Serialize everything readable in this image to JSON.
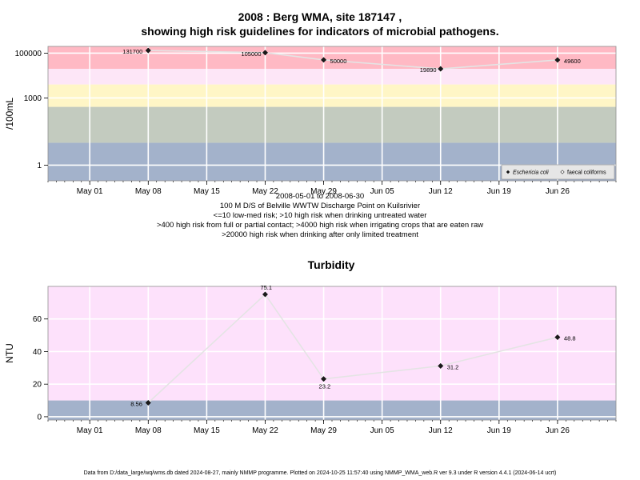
{
  "title_line1": "2008 : Berg WMA, site 187147 ,",
  "title_line2": "showing high risk guidelines for indicators of microbial pathogens.",
  "captions": [
    "2008-05-01 to 2008-06-30",
    "100 M D/S of Belville WWTW Discharge Point on Kuilsrivier",
    "<=10 low-med risk; >10 high risk when drinking untreated water",
    ">400 high risk from full or partial contact; >4000 high risk when irrigating crops that are eaten raw",
    ">20000 high risk when drinking after only limited treatment"
  ],
  "footer": "Data from D:/data_large/wq/wms.db dated 2024-08-27, mainly NMMP programme. Plotted on 2024-10-25 11:57:40 using NMMP_WMA_web.R ver 9.3 under R version 4.4.1 (2024-06-14 ucrt)",
  "chart_data": [
    {
      "type": "line",
      "title": "",
      "ylabel": "/100mL",
      "yscale": "log10",
      "ylim": [
        0.2,
        200000
      ],
      "xlim": [
        "2008-04-26",
        "2008-07-03"
      ],
      "x_ticks": [
        "May 01",
        "May 08",
        "May 15",
        "May 22",
        "May 29",
        "Jun 05",
        "Jun 12",
        "Jun 19",
        "Jun 26"
      ],
      "x_tick_dates": [
        "2008-05-01",
        "2008-05-08",
        "2008-05-15",
        "2008-05-22",
        "2008-05-29",
        "2008-06-05",
        "2008-06-12",
        "2008-06-19",
        "2008-06-26"
      ],
      "y_ticks": [
        1,
        1000,
        100000
      ],
      "y_tick_labels": [
        "1",
        "1000",
        "100000"
      ],
      "bands": [
        {
          "from": 0.2,
          "to": 10,
          "color": "#a3b2cb"
        },
        {
          "from": 10,
          "to": 400,
          "color": "#c3cbbf"
        },
        {
          "from": 400,
          "to": 4000,
          "color": "#fff6c6"
        },
        {
          "from": 4000,
          "to": 20000,
          "color": "#fde6f7"
        },
        {
          "from": 20000,
          "to": 200000,
          "color": "#ffb9c4"
        }
      ],
      "series": [
        {
          "name": "Eschericia coli",
          "marker": "filled-diamond",
          "x": [
            "2008-05-08",
            "2008-05-22",
            "2008-05-29",
            "2008-06-12",
            "2008-06-26"
          ],
          "values": [
            131700,
            105000,
            50000,
            19890,
            49600
          ],
          "labels": [
            "131700",
            "105000",
            "50000",
            "19890",
            "49600"
          ]
        }
      ],
      "legend": {
        "placement": "bottom-right",
        "entries": [
          {
            "label": "Eschericia coli",
            "marker": "filled-diamond",
            "italic": true
          },
          {
            "label": "faecal coliforms",
            "marker": "open-diamond",
            "italic": false
          }
        ]
      }
    },
    {
      "type": "line",
      "title": "Turbidity",
      "ylabel": "NTU",
      "yscale": "linear",
      "ylim": [
        -2,
        80
      ],
      "xlim": [
        "2008-04-26",
        "2008-07-03"
      ],
      "x_ticks": [
        "May 01",
        "May 08",
        "May 15",
        "May 22",
        "May 29",
        "Jun 05",
        "Jun 12",
        "Jun 19",
        "Jun 26"
      ],
      "x_tick_dates": [
        "2008-05-01",
        "2008-05-08",
        "2008-05-15",
        "2008-05-22",
        "2008-05-29",
        "2008-06-05",
        "2008-06-12",
        "2008-06-19",
        "2008-06-26"
      ],
      "y_ticks": [
        0,
        20,
        40,
        60
      ],
      "y_tick_labels": [
        "0",
        "20",
        "40",
        "60"
      ],
      "bands": [
        {
          "from": -2,
          "to": 10,
          "color": "#a3b2cb"
        },
        {
          "from": 10,
          "to": 80,
          "color": "#fde1fb"
        }
      ],
      "series": [
        {
          "name": "",
          "marker": "filled-diamond",
          "x": [
            "2008-05-08",
            "2008-05-22",
            "2008-05-29",
            "2008-06-12",
            "2008-06-26"
          ],
          "values": [
            8.56,
            75.1,
            23.2,
            31.2,
            48.8
          ],
          "labels": [
            "8.56",
            "75.1",
            "23.2",
            "31.2",
            "48.8"
          ]
        }
      ]
    }
  ]
}
